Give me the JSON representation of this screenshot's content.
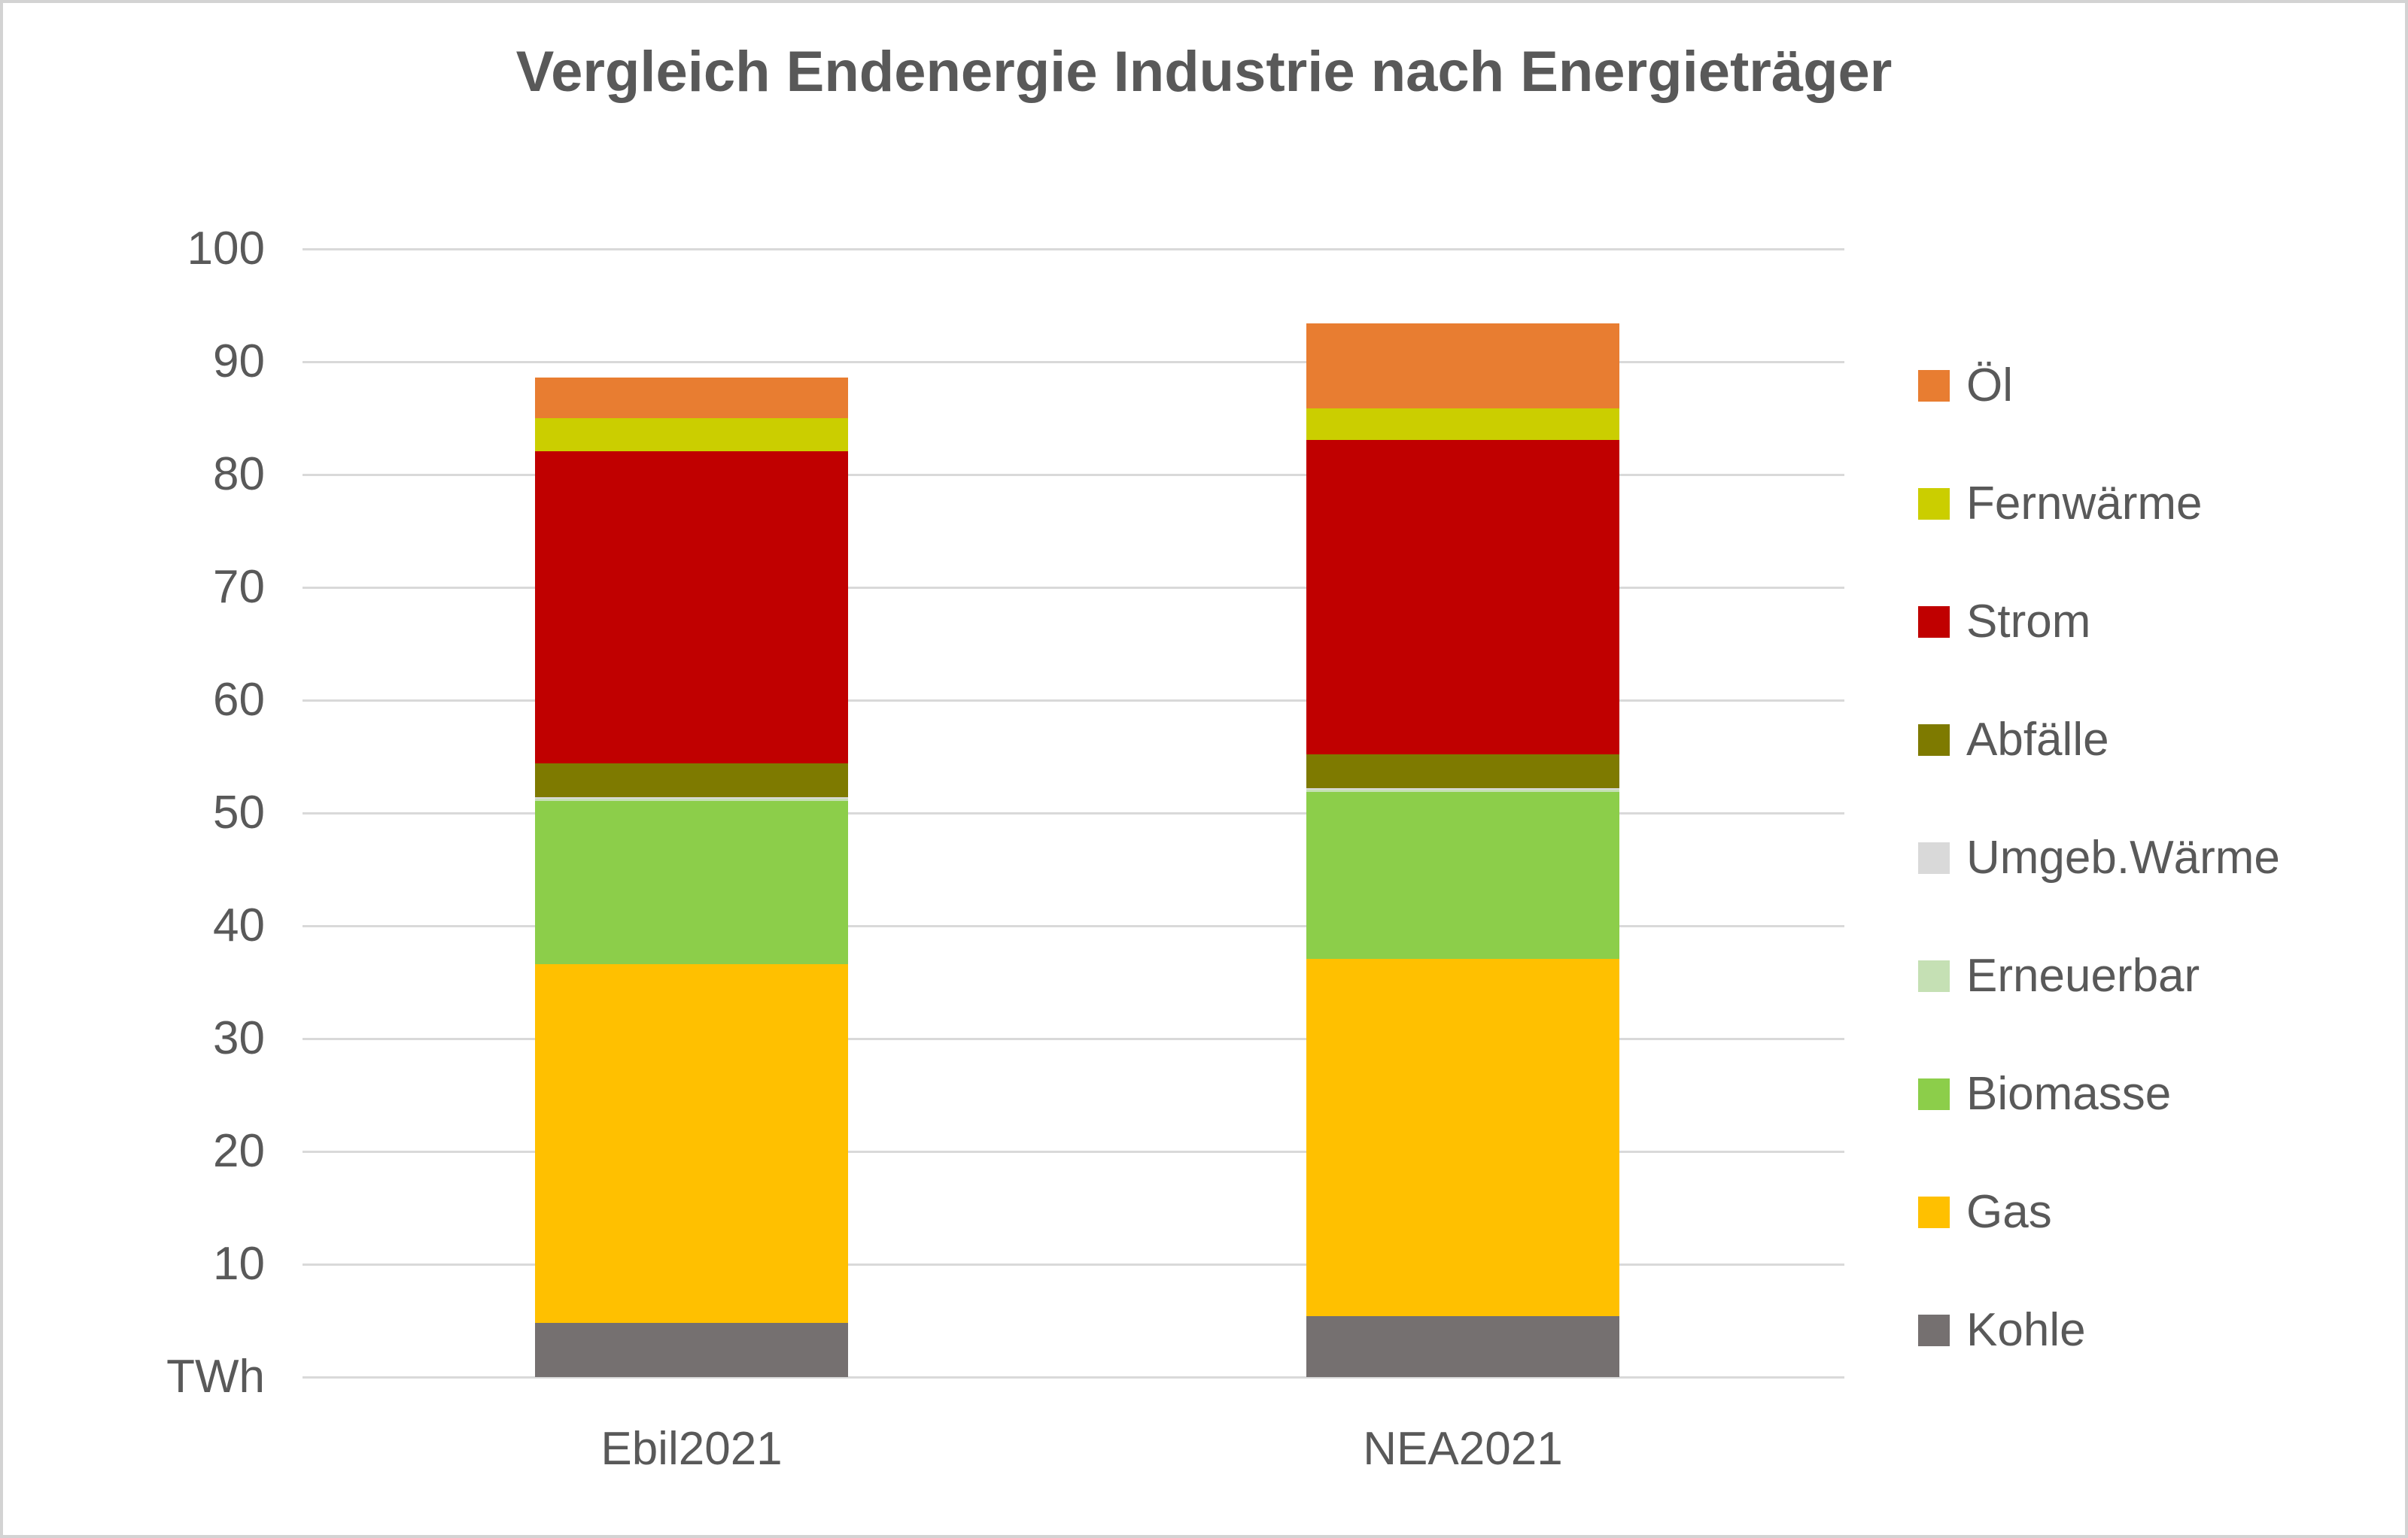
{
  "title": "Vergleich Endenergie Industrie nach Energieträger",
  "y_axis": {
    "unit_label": "TWh",
    "ticks": [
      100,
      90,
      80,
      70,
      60,
      50,
      40,
      30,
      20,
      10
    ],
    "min": 0,
    "max": 100,
    "grid_step": 10
  },
  "chart_data": {
    "type": "bar",
    "stacked": true,
    "title": "Vergleich Endenergie Industrie nach Energieträger",
    "xlabel": "",
    "ylabel": "TWh",
    "ylim": [
      0,
      100
    ],
    "grid": true,
    "legend_position": "right",
    "categories": [
      "Ebil2021",
      "NEA2021"
    ],
    "series": [
      {
        "name": "Öl",
        "color": "#E87D31",
        "values": [
          3.6,
          7.5
        ]
      },
      {
        "name": "Fernwärme",
        "color": "#CBCE00",
        "values": [
          2.9,
          2.8
        ]
      },
      {
        "name": "Strom",
        "color": "#C00000",
        "values": [
          27.7,
          27.9
        ]
      },
      {
        "name": "Abfälle",
        "color": "#7E7A00",
        "values": [
          3.0,
          3.0
        ]
      },
      {
        "name": "Umgeb.Wärme",
        "color": "#D9D9D9",
        "values": [
          0.1,
          0.1
        ]
      },
      {
        "name": "Erneuerbar",
        "color": "#C5E0B4",
        "values": [
          0.2,
          0.2
        ]
      },
      {
        "name": "Biomasse",
        "color": "#8CCE4A",
        "values": [
          14.5,
          14.8
        ]
      },
      {
        "name": "Gas",
        "color": "#FFC000",
        "values": [
          31.8,
          31.7
        ]
      },
      {
        "name": "Kohle",
        "color": "#757070",
        "values": [
          4.8,
          5.4
        ]
      }
    ],
    "stack_order_bottom_to_top": [
      "Kohle",
      "Gas",
      "Biomasse",
      "Erneuerbar",
      "Umgeb.Wärme",
      "Abfälle",
      "Strom",
      "Fernwärme",
      "Öl"
    ],
    "totals": [
      88.6,
      93.4
    ]
  },
  "colors": {
    "grid": "#D9D9D9",
    "text": "#595959",
    "frame": "#D3D3D3",
    "background": "#FFFFFF"
  }
}
